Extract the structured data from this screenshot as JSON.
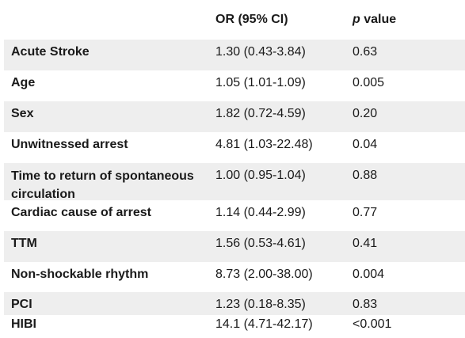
{
  "header": {
    "or_label": "OR (95% CI)",
    "p_italic": "p",
    "p_rest": " value"
  },
  "rows": [
    {
      "variable": "Acute Stroke",
      "or": "1.30 (0.43-3.84)",
      "p": "0.63"
    },
    {
      "variable": "Age",
      "or": "1.05 (1.01-1.09)",
      "p": "0.005"
    },
    {
      "variable": "Sex",
      "or": "1.82 (0.72-4.59)",
      "p": "0.20"
    },
    {
      "variable": "Unwitnessed arrest",
      "or": "4.81 (1.03-22.48)",
      "p": "0.04"
    },
    {
      "variable": "Time to return of spontaneous circulation",
      "or": "1.00 (0.95-1.04)",
      "p": "0.88"
    },
    {
      "variable": "Cardiac cause of arrest",
      "or": "1.14 (0.44-2.99)",
      "p": "0.77"
    },
    {
      "variable": "TTM",
      "or": "1.56 (0.53-4.61)",
      "p": "0.41"
    },
    {
      "variable": "Non-shockable rhythm",
      "or": "8.73 (2.00-38.00)",
      "p": "0.004"
    },
    {
      "variable": "PCI",
      "or": "1.23 (0.18-8.35)",
      "p": "0.83"
    },
    {
      "variable": "HIBI",
      "or": "14.1 (4.71-42.17)",
      "p": "<0.001"
    }
  ]
}
